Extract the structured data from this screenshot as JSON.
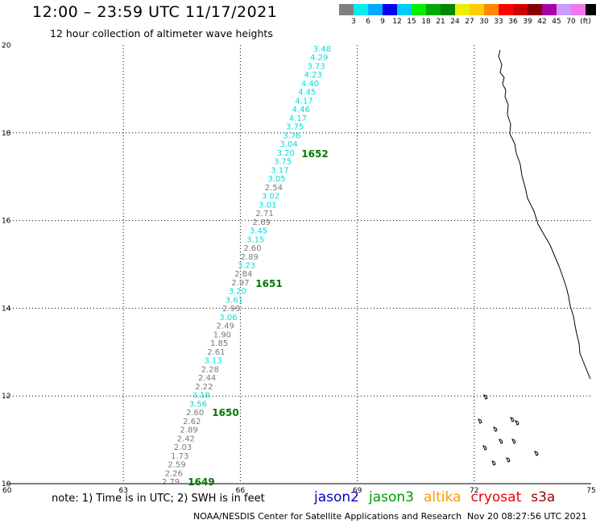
{
  "title": "12:00 – 23:59 UTC 11/17/2021",
  "subtitle": "12 hour collection of altimeter wave heights",
  "legend": {
    "colors": [
      "#808080",
      "#00eeee",
      "#00aaff",
      "#0000ee",
      "#00ccff",
      "#00ee00",
      "#00aa00",
      "#008800",
      "#eeee00",
      "#ffcc00",
      "#ff8800",
      "#ff0000",
      "#cc0000",
      "#880000",
      "#aa00aa",
      "#cc99ff",
      "#ee77ee",
      "#000000"
    ],
    "labels": [
      "3",
      "6",
      "9",
      "12",
      "15",
      "18",
      "21",
      "24",
      "27",
      "30",
      "33",
      "36",
      "39",
      "42",
      "45",
      "70",
      "(ft)"
    ]
  },
  "axes": {
    "x_ticks": [
      "60",
      "63",
      "66",
      "69",
      "72",
      "75"
    ],
    "y_ticks": [
      "10",
      "12",
      "14",
      "16",
      "18",
      "20"
    ],
    "x_range": [
      60,
      75
    ],
    "y_range": [
      10,
      20
    ]
  },
  "track": {
    "values": [
      "3.48",
      "4.29",
      "3.73",
      "4.23",
      "4.40",
      "4.45",
      "4.17",
      "4.46",
      "4.17",
      "3.75",
      "3.76",
      "3.04",
      "3.20",
      "3.75",
      "3.17",
      "3.05",
      "2.54",
      "3.02",
      "3.01",
      "2.71",
      "2.69",
      "3.45",
      "3.15",
      "2.60",
      "2.89",
      "3.23",
      "2.84",
      "2.97",
      "3.20",
      "3.61",
      "2.99",
      "3.06",
      "2.49",
      "1.90",
      "1.85",
      "2.61",
      "3.13",
      "2.28",
      "2.44",
      "2.22",
      "3.18",
      "3.56",
      "2.60",
      "2.62",
      "2.89",
      "2.42",
      "2.03",
      "1.73",
      "2.59",
      "2.26",
      "2.79"
    ],
    "colors": [
      "cyan",
      "cyan",
      "cyan",
      "cyan",
      "cyan",
      "cyan",
      "cyan",
      "cyan",
      "cyan",
      "cyan",
      "cyan",
      "cyan",
      "cyan",
      "cyan",
      "cyan",
      "cyan",
      "gray",
      "cyan",
      "cyan",
      "gray",
      "gray",
      "cyan",
      "cyan",
      "gray",
      "gray",
      "cyan",
      "gray",
      "gray",
      "cyan",
      "cyan",
      "gray",
      "cyan",
      "gray",
      "gray",
      "gray",
      "gray",
      "cyan",
      "gray",
      "gray",
      "gray",
      "cyan",
      "cyan",
      "gray",
      "gray",
      "gray",
      "gray",
      "gray",
      "gray",
      "gray",
      "gray",
      "gray"
    ],
    "time_labels": [
      "1652",
      "1651",
      "1650",
      "1649"
    ]
  },
  "note": "note: 1) Time is in UTC; 2) SWH is in feet",
  "satellites": [
    {
      "name": "jason2",
      "color": "#0000cc"
    },
    {
      "name": "jason3",
      "color": "#009900"
    },
    {
      "name": "altika",
      "color": "#ff9900"
    },
    {
      "name": "cryosat",
      "color": "#ee0000"
    },
    {
      "name": "s3a",
      "color": "#990000"
    }
  ],
  "footer": "NOAA/NESDIS Center for Satellite Applications and Research",
  "timestamp": "Nov 20 08:27:56 UTC 2021"
}
